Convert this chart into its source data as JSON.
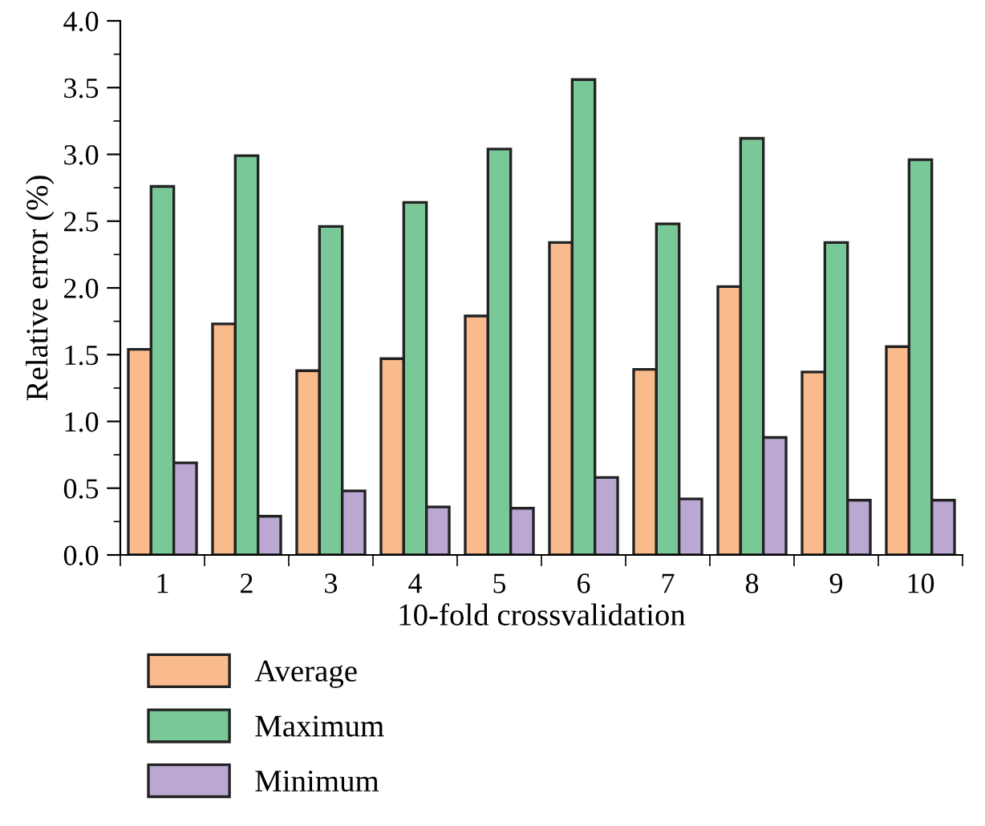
{
  "chart_data": {
    "type": "bar",
    "xlabel": "10-fold crossvalidation",
    "ylabel": "Relative error (%)",
    "categories": [
      "1",
      "2",
      "3",
      "4",
      "5",
      "6",
      "7",
      "8",
      "9",
      "10"
    ],
    "series": [
      {
        "name": "Average",
        "color": "#f9bb8c",
        "values": [
          1.54,
          1.73,
          1.38,
          1.47,
          1.79,
          2.34,
          1.39,
          2.01,
          1.37,
          1.56
        ]
      },
      {
        "name": "Maximum",
        "color": "#78c997",
        "values": [
          2.76,
          2.99,
          2.46,
          2.64,
          3.04,
          3.56,
          2.48,
          3.12,
          2.34,
          2.96
        ]
      },
      {
        "name": "Minimum",
        "color": "#baa8d2",
        "values": [
          0.69,
          0.29,
          0.48,
          0.36,
          0.35,
          0.58,
          0.42,
          0.88,
          0.41,
          0.41
        ]
      }
    ],
    "ylim": [
      0,
      4.0
    ],
    "yticks": [
      {
        "value": 0,
        "label": "0.0"
      },
      {
        "value": 0.5,
        "label": "0.5"
      },
      {
        "value": 1.0,
        "label": "1.0"
      },
      {
        "value": 1.5,
        "label": "1.5"
      },
      {
        "value": 2.0,
        "label": "2.0"
      },
      {
        "value": 2.5,
        "label": "2.5"
      },
      {
        "value": 3.0,
        "label": "3.0"
      },
      {
        "value": 3.5,
        "label": "3.5"
      },
      {
        "value": 4.0,
        "label": "4.0"
      }
    ],
    "grid": false,
    "legend": "bottom left"
  }
}
